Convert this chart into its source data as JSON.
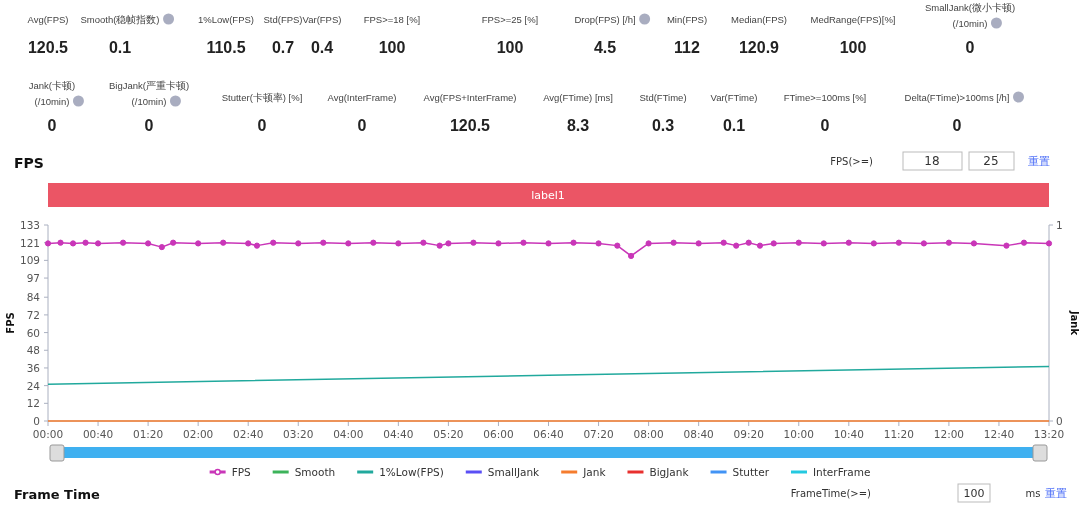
{
  "chart_data": [
    {
      "type": "other",
      "annotations": [
        "Avg(FPS)",
        "120.5",
        "Smooth(稳帧指数)",
        "0.1",
        "1%Low(FPS)",
        "110.5",
        "Std(FPS)",
        "0.7",
        "Var(FPS)",
        "0.4",
        "FPS>=18 [%]",
        "100",
        "FPS>=25 [%]",
        "100",
        "Drop(FPS) [/h]",
        "4.5",
        "Min(FPS)",
        "112",
        "Median(FPS)",
        "120.9",
        "MedRange(FPS)[%]",
        "100",
        "SmallJank(微小卡顿)",
        "(/10min)",
        "0",
        "Jank(卡顿)",
        "(/10min)",
        "0",
        "BigJank(严重卡顿)",
        "(/10min)",
        "0",
        "Stutter(卡顿率) [%]",
        "0",
        "Avg(InterFrame)",
        "0",
        "Avg(FPS+InterFrame)",
        "120.5",
        "Avg(FTime) [ms]",
        "8.3",
        "Std(FTime)",
        "0.3",
        "Var(FTime)",
        "0.1",
        "FTime>=100ms [%]",
        "0",
        "Delta(FTime)>100ms [/h]",
        "0"
      ]
    },
    {
      "type": "line",
      "title": "FPS",
      "ylabel": "FPS",
      "y2label": "Jank",
      "annotations": [
        "FPS(>=)",
        "18",
        "25",
        "重置",
        "Frame Time",
        "FrameTime(>=)",
        "100",
        "ms",
        "重置",
        "label1"
      ],
      "xlim": [
        0,
        800
      ],
      "xticks": [
        {
          "value": 0,
          "label": "00:00"
        },
        {
          "value": 40,
          "label": "00:40"
        },
        {
          "value": 80,
          "label": "01:20"
        },
        {
          "value": 120,
          "label": "02:00"
        },
        {
          "value": 160,
          "label": "02:40"
        },
        {
          "value": 200,
          "label": "03:20"
        },
        {
          "value": 240,
          "label": "04:00"
        },
        {
          "value": 280,
          "label": "04:40"
        },
        {
          "value": 320,
          "label": "05:20"
        },
        {
          "value": 360,
          "label": "06:00"
        },
        {
          "value": 400,
          "label": "06:40"
        },
        {
          "value": 440,
          "label": "07:20"
        },
        {
          "value": 480,
          "label": "08:00"
        },
        {
          "value": 520,
          "label": "08:40"
        },
        {
          "value": 560,
          "label": "09:20"
        },
        {
          "value": 600,
          "label": "10:00"
        },
        {
          "value": 640,
          "label": "10:40"
        },
        {
          "value": 680,
          "label": "11:20"
        },
        {
          "value": 720,
          "label": "12:00"
        },
        {
          "value": 760,
          "label": "12:40"
        },
        {
          "value": 800,
          "label": "13:20"
        }
      ],
      "ylim": [
        0,
        133
      ],
      "yticks": [
        0,
        12,
        24,
        36,
        48,
        60,
        72,
        84,
        97,
        109,
        121,
        133
      ],
      "y2lim": [
        0,
        1
      ],
      "y2ticks": [
        0,
        1
      ],
      "legend": "bottom",
      "line_style": "solid",
      "series": [
        {
          "name": "FPS",
          "color": "#c936b8",
          "marker": "circle",
          "x": [
            0,
            10,
            20,
            30,
            40,
            60,
            80,
            91,
            100,
            120,
            140,
            160,
            167,
            180,
            200,
            220,
            240,
            260,
            280,
            300,
            313,
            320,
            340,
            360,
            380,
            400,
            420,
            440,
            455,
            466,
            480,
            500,
            520,
            540,
            550,
            560,
            569,
            580,
            600,
            620,
            640,
            660,
            680,
            700,
            720,
            740,
            766,
            780,
            800
          ],
          "values": [
            120.5,
            121,
            120.5,
            121,
            120.5,
            121,
            120.5,
            118,
            121,
            120.5,
            121,
            120.5,
            119,
            121,
            120.5,
            121,
            120.5,
            121,
            120.5,
            121,
            119,
            120.5,
            121,
            120.5,
            121,
            120.5,
            121,
            120.5,
            119,
            112,
            120.5,
            121,
            120.5,
            121,
            119,
            121,
            119,
            120.5,
            121,
            120.5,
            121,
            120.5,
            121,
            120.5,
            121,
            120.5,
            119,
            121,
            120.5
          ]
        },
        {
          "name": "Smooth",
          "color": "#3cb35a"
        },
        {
          "name": "1%Low(FPS)",
          "color": "#21a99d",
          "x": [
            0,
            400,
            800
          ],
          "values": [
            25,
            31,
            37
          ]
        },
        {
          "name": "SmallJank",
          "color": "#5a4ff5"
        },
        {
          "name": "Jank",
          "color": "#f57c2e",
          "x": [
            0,
            800
          ],
          "values": [
            0,
            0
          ]
        },
        {
          "name": "BigJank",
          "color": "#e8302e"
        },
        {
          "name": "Stutter",
          "color": "#4193f5"
        },
        {
          "name": "InterFrame",
          "color": "#24c9e0"
        }
      ]
    }
  ]
}
